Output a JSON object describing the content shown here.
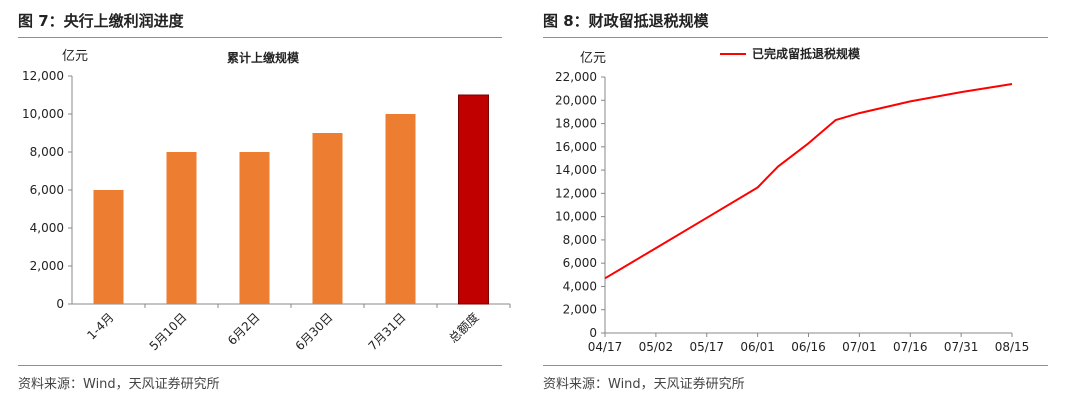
{
  "figure_left": {
    "title": "图 7：央行上缴利润进度",
    "source": "资料来源：Wind，天风证券研究所"
  },
  "figure_right": {
    "title": "图 8：财政留抵退税规模",
    "source": "资料来源：Wind，天风证券研究所"
  },
  "colors": {
    "rule": "#e07b2a",
    "bar": "#ed7d31",
    "bar_highlight": "#c00000",
    "line": "#ff0000"
  },
  "chart_data": [
    {
      "type": "bar",
      "title": "累计上缴规模",
      "ylabel": "亿元",
      "xlabel": "",
      "categories": [
        "1-4月",
        "5月10日",
        "6月2日",
        "6月30日",
        "7月31日",
        "总额度"
      ],
      "values": [
        6000,
        8000,
        8000,
        9000,
        10000,
        11000
      ],
      "highlight_index": 5,
      "ylim": [
        0,
        12000
      ],
      "yticks": [
        "0",
        "2,000",
        "4,000",
        "6,000",
        "8,000",
        "10,000",
        "12,000"
      ],
      "grid": false,
      "legend": "none"
    },
    {
      "type": "line",
      "ylabel": "亿元",
      "xlabel": "",
      "series": [
        {
          "name": "已完成留抵退税规模",
          "x": [
            "04/17",
            "05/02",
            "05/17",
            "06/01",
            "06/07",
            "06/16",
            "06/24",
            "07/01",
            "07/16",
            "07/31",
            "08/15"
          ],
          "values": [
            4700,
            7300,
            9900,
            12500,
            14300,
            16300,
            18300,
            18900,
            19900,
            20700,
            21400
          ]
        }
      ],
      "x_ticks": [
        "04/17",
        "05/02",
        "05/17",
        "06/01",
        "06/16",
        "07/01",
        "07/16",
        "07/31",
        "08/15"
      ],
      "ylim": [
        0,
        22000
      ],
      "yticks": [
        "0",
        "2,000",
        "4,000",
        "6,000",
        "8,000",
        "10,000",
        "12,000",
        "14,000",
        "16,000",
        "18,000",
        "20,000",
        "22,000"
      ],
      "grid": false,
      "legend": "top"
    }
  ]
}
